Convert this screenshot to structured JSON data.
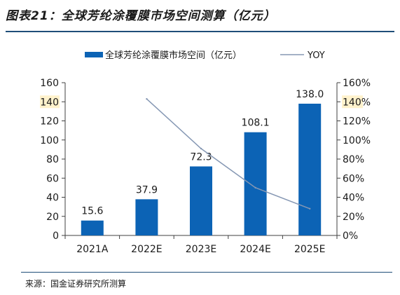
{
  "title": "图表21：全球芳纶涂覆膜市场空间测算（亿元）",
  "source": "来源：国金证券研究所测算",
  "colors": {
    "bar": "#0c63b5",
    "line": "#8597b3",
    "axis": "#404040",
    "text": "#1a1a1a",
    "highlight": "#fff2cc"
  },
  "chart_data": {
    "type": "bar",
    "categories": [
      "2021A",
      "2022E",
      "2023E",
      "2024E",
      "2025E"
    ],
    "series": [
      {
        "name": "全球芳纶涂覆膜市场空间（亿元）",
        "type": "bar",
        "axis": "left",
        "values": [
          15.6,
          37.9,
          72.3,
          108.1,
          138.0
        ],
        "value_labels": [
          "15.6",
          "37.9",
          "72.3",
          "108.1",
          "138.0"
        ]
      },
      {
        "name": "YOY",
        "type": "line",
        "axis": "right",
        "values": [
          null,
          1.43,
          0.91,
          0.5,
          0.28
        ]
      }
    ],
    "left_axis": {
      "min": 0,
      "max": 160,
      "step": 20,
      "tick_labels": [
        "0",
        "20",
        "40",
        "60",
        "80",
        "100",
        "120",
        "140",
        "160"
      ]
    },
    "right_axis": {
      "min": 0,
      "max": 1.6,
      "step": 0.2,
      "tick_labels": [
        "0%",
        "20%",
        "40%",
        "60%",
        "80%",
        "100%",
        "120%",
        "140%",
        "160%"
      ]
    },
    "highlighted_tick_index": 7,
    "legend_position": "top",
    "grid": false
  }
}
